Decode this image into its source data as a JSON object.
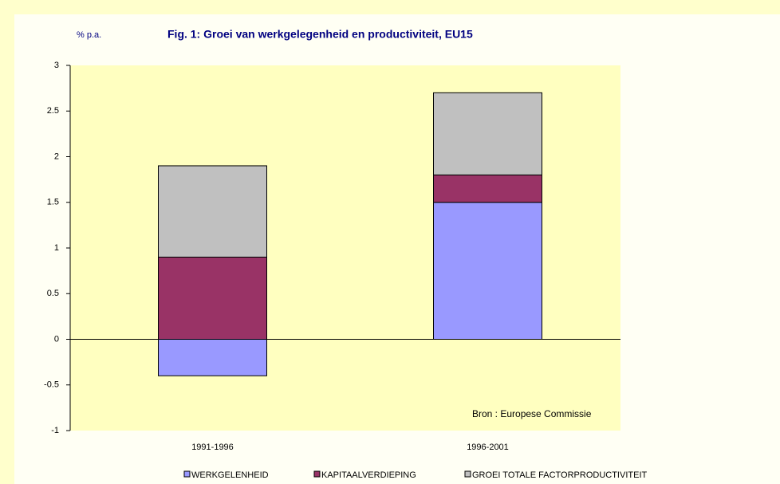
{
  "chart_data": {
    "type": "bar",
    "stacked": true,
    "title": "Fig. 1: Groei van werkgelegenheid en productiviteit, EU15",
    "y_label": "% p.a.",
    "annotation": "Bron : Europese Commissie",
    "categories": [
      "1991-1996",
      "1996-2001"
    ],
    "series": [
      {
        "name": "WERKGELENHEID",
        "color": "#9999ff",
        "values": [
          -0.4,
          1.5
        ]
      },
      {
        "name": "KAPITAALVERDIEPING",
        "color": "#993366",
        "values": [
          0.9,
          0.3
        ]
      },
      {
        "name": "GROEI TOTALE FACTORPRODUCTIVITEIT",
        "color": "#c0c0c0",
        "values": [
          1.0,
          0.9
        ]
      }
    ],
    "ylim": [
      -1,
      3
    ],
    "yticks": [
      -1,
      -0.5,
      0,
      0.5,
      1,
      1.5,
      2,
      2.5,
      3
    ],
    "grid": false,
    "legend": "bottom"
  }
}
